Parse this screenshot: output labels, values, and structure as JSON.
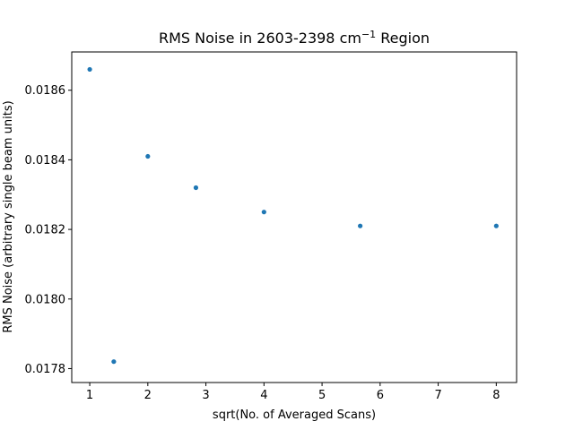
{
  "chart_data": {
    "type": "scatter",
    "title": "RMS Noise in 2603-2398 cm",
    "title_superscript": "−1",
    "title_suffix": " Region",
    "xlabel": "sqrt(No. of Averaged Scans)",
    "ylabel": "RMS Noise (arbitrary single beam units)",
    "xlim": [
      0.69,
      8.35
    ],
    "ylim": [
      0.01776,
      0.01871
    ],
    "xticks": [
      1,
      2,
      3,
      4,
      5,
      6,
      7,
      8
    ],
    "xtick_labels": [
      "1",
      "2",
      "3",
      "4",
      "5",
      "6",
      "7",
      "8"
    ],
    "yticks": [
      0.0178,
      0.018,
      0.0182,
      0.0184,
      0.0186
    ],
    "ytick_labels": [
      "0.0178",
      "0.0180",
      "0.0182",
      "0.0184",
      "0.0186"
    ],
    "grid": false,
    "marker_color": "#1f77b4",
    "x": [
      1.0,
      1.414,
      2.0,
      2.828,
      4.0,
      5.657,
      8.0
    ],
    "y": [
      0.01866,
      0.01782,
      0.01841,
      0.01832,
      0.01825,
      0.01821,
      0.01821
    ]
  }
}
